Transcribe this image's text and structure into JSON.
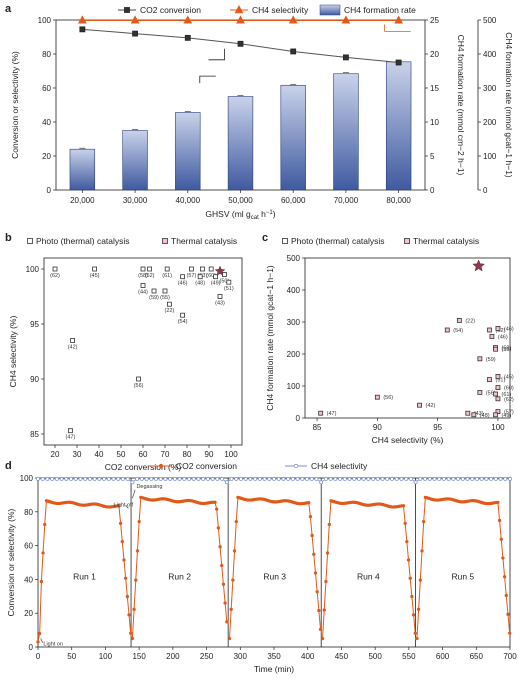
{
  "chart_data": [
    {
      "panel": "a",
      "type": "bar",
      "xlabel": "GHSV (ml g",
      "xlabel_sub": "cat",
      "xlabel_tail": " h",
      "xlabel_sup": "−1",
      "xlabel_end": ")",
      "categories": [
        "20,000",
        "30,000",
        "40,000",
        "50,000",
        "60,000",
        "70,000",
        "80,000"
      ],
      "ylabel_left": "Conversion or selectivity (%)",
      "ylabel_right1": "CH4 formation rate (mmol cm−2 h−1)",
      "ylabel_right2": "CH4 formation rate (mmol gcat−1 h−1)",
      "ylim_left": [
        0,
        100
      ],
      "ylim_right1": [
        0,
        25
      ],
      "ylim_right2": [
        0,
        500
      ],
      "yticks_left": [
        "0",
        "20",
        "40",
        "60",
        "80",
        "100"
      ],
      "yticks_right1": [
        "0",
        "5",
        "10",
        "15",
        "20",
        "25"
      ],
      "yticks_right2": [
        "0",
        "100",
        "200",
        "300",
        "400",
        "500"
      ],
      "series": [
        {
          "name": "CO2 conversion",
          "values": [
            94.5,
            92,
            89.5,
            86,
            81.5,
            78,
            75
          ],
          "color": "#444444"
        },
        {
          "name": "CH4 selectivity",
          "values": [
            99.8,
            99.8,
            99.8,
            99.8,
            99.8,
            99.8,
            99.8
          ],
          "color": "#e05a1a"
        },
        {
          "name": "CH4 formation rate",
          "values": [
            120,
            175,
            228,
            275,
            308,
            342,
            377
          ],
          "color": "#4a64a8"
        }
      ]
    },
    {
      "panel": "b",
      "type": "scatter",
      "xlabel": "CO2 conversion (%)",
      "ylabel": "CH4 selectivity (%)",
      "xlim": [
        15,
        105
      ],
      "ylim": [
        84,
        101
      ],
      "xticks": [
        "20",
        "30",
        "40",
        "50",
        "60",
        "70",
        "80",
        "90",
        "100"
      ],
      "yticks": [
        "85",
        "90",
        "95",
        "100"
      ],
      "legend": [
        "Photo (thermal) catalysis",
        "Thermal catalysis"
      ],
      "points": [
        {
          "x": 20,
          "y": 100,
          "ref": "(62)"
        },
        {
          "x": 38,
          "y": 100,
          "ref": "(45)"
        },
        {
          "x": 28,
          "y": 93.5,
          "ref": "(42)"
        },
        {
          "x": 27,
          "y": 85.3,
          "ref": "(47)"
        },
        {
          "x": 58,
          "y": 90,
          "ref": "(56)"
        },
        {
          "x": 60,
          "y": 100,
          "ref": "(58)"
        },
        {
          "x": 63,
          "y": 100,
          "ref": "(52)"
        },
        {
          "x": 71,
          "y": 100,
          "ref": "(61)"
        },
        {
          "x": 60,
          "y": 98.5,
          "ref": "(44)"
        },
        {
          "x": 65,
          "y": 98,
          "ref": "(59)"
        },
        {
          "x": 70,
          "y": 98,
          "ref": "(55)"
        },
        {
          "x": 72,
          "y": 96.8,
          "ref": "(22)"
        },
        {
          "x": 78,
          "y": 95.8,
          "ref": "(54)"
        },
        {
          "x": 78,
          "y": 99.3,
          "ref": "(46)"
        },
        {
          "x": 82,
          "y": 100,
          "ref": "(57)"
        },
        {
          "x": 87,
          "y": 100,
          "ref": "(53)"
        },
        {
          "x": 86,
          "y": 99.3,
          "ref": "(48)"
        },
        {
          "x": 91,
          "y": 100,
          "ref": "(60)"
        },
        {
          "x": 93,
          "y": 99.3,
          "ref": "(49)"
        },
        {
          "x": 97,
          "y": 99.5,
          "ref": "(50)"
        },
        {
          "x": 99,
          "y": 98.8,
          "ref": "(51)"
        },
        {
          "x": 95,
          "y": 97.5,
          "ref": "(43)"
        },
        {
          "x": 95,
          "y": 99.8,
          "ref": "",
          "star": true
        }
      ]
    },
    {
      "panel": "c",
      "type": "scatter",
      "xlabel": "CH4 selectivity (%)",
      "ylabel": "CH4 formation rate (mmol gcat−1 h−1)",
      "xlim": [
        84,
        101
      ],
      "ylim": [
        0,
        500
      ],
      "xticks": [
        "85",
        "90",
        "95",
        "100"
      ],
      "yticks": [
        "0",
        "100",
        "200",
        "300",
        "400",
        "500"
      ],
      "legend": [
        "Photo (thermal) catalysis",
        "Thermal catalysis"
      ],
      "points": [
        {
          "x": 85.3,
          "y": 15,
          "ref": "(47)"
        },
        {
          "x": 90,
          "y": 65,
          "ref": "(56)"
        },
        {
          "x": 93.5,
          "y": 40,
          "ref": "(42)"
        },
        {
          "x": 96.8,
          "y": 305,
          "ref": "(22)"
        },
        {
          "x": 95.8,
          "y": 275,
          "ref": "(54)"
        },
        {
          "x": 97.5,
          "y": 15,
          "ref": "(43)"
        },
        {
          "x": 98,
          "y": 10,
          "ref": "(48)"
        },
        {
          "x": 98.5,
          "y": 185,
          "ref": "(59)"
        },
        {
          "x": 98.5,
          "y": 80,
          "ref": "(56)"
        },
        {
          "x": 99.3,
          "y": 120,
          "ref": "(51)"
        },
        {
          "x": 99.3,
          "y": 275,
          "ref": "(52)"
        },
        {
          "x": 99.5,
          "y": 255,
          "ref": "(46)"
        },
        {
          "x": 99.8,
          "y": 220,
          "ref": "(58)"
        },
        {
          "x": 99.8,
          "y": 215,
          "ref": "(55)"
        },
        {
          "x": 100,
          "y": 280,
          "ref": "(46)"
        },
        {
          "x": 100,
          "y": 130,
          "ref": "(45)"
        },
        {
          "x": 100,
          "y": 95,
          "ref": "(60)"
        },
        {
          "x": 99.8,
          "y": 75,
          "ref": "(61)"
        },
        {
          "x": 100,
          "y": 60,
          "ref": "(62)"
        },
        {
          "x": 100,
          "y": 20,
          "ref": "(57)"
        },
        {
          "x": 99.8,
          "y": 10,
          "ref": "(49)"
        },
        {
          "x": 98.4,
          "y": 475,
          "ref": "",
          "star": true
        }
      ]
    },
    {
      "panel": "d",
      "type": "line",
      "xlabel": "Time (min)",
      "ylabel": "Conversion or selectivity (%)",
      "xlim": [
        0,
        700
      ],
      "ylim": [
        0,
        100
      ],
      "xticks": [
        "0",
        "50",
        "100",
        "150",
        "200",
        "250",
        "300",
        "350",
        "400",
        "450",
        "500",
        "550",
        "600",
        "650",
        "700"
      ],
      "yticks": [
        "0",
        "20",
        "40",
        "60",
        "80",
        "100"
      ],
      "runs": [
        "Run 1",
        "Run 2",
        "Run 3",
        "Run 4",
        "Run 5"
      ],
      "run_boundaries": [
        138,
        282,
        420,
        560
      ],
      "annotations": [
        "Light off",
        "Degassing",
        "Light on"
      ],
      "series": [
        {
          "name": "CO2 conversion",
          "color": "#e05a1a"
        },
        {
          "name": "CH4 selectivity",
          "color": "#7a8fc8"
        }
      ],
      "co2_segments": [
        {
          "start": 0,
          "end": 138,
          "plateau": 84
        },
        {
          "start": 140,
          "end": 282,
          "plateau": 86
        },
        {
          "start": 284,
          "end": 420,
          "plateau": 86
        },
        {
          "start": 422,
          "end": 560,
          "plateau": 84
        },
        {
          "start": 562,
          "end": 700,
          "plateau": 86
        }
      ]
    }
  ]
}
